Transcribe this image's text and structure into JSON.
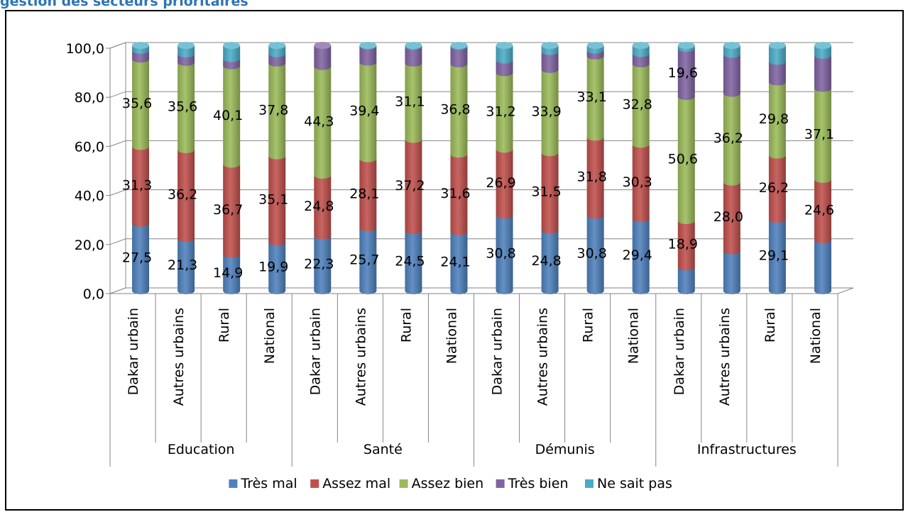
{
  "page": {
    "title": "gestion des secteurs prioritaires"
  },
  "chart_data": {
    "type": "bar",
    "stacked": true,
    "three_d": true,
    "title": "",
    "xlabel": "",
    "ylabel": "",
    "ylim": [
      0,
      100
    ],
    "yticks": [
      "0,0",
      "20,0",
      "40,0",
      "60,0",
      "80,0",
      "100,0"
    ],
    "grid": true,
    "legend_position": "bottom",
    "groups": [
      {
        "name": "Education",
        "categories": [
          "Dakar urbain",
          "Autres urbains",
          "Rural",
          "National"
        ]
      },
      {
        "name": "Santé",
        "categories": [
          "Dakar urbain",
          "Autres urbains",
          "Rural",
          "National"
        ]
      },
      {
        "name": "Démunis",
        "categories": [
          "Dakar urbain",
          "Autres urbains",
          "Rural",
          "National"
        ]
      },
      {
        "name": "Infrastructures",
        "categories": [
          "Dakar urbain",
          "Autres urbains",
          "Rural",
          "National"
        ]
      }
    ],
    "series": [
      {
        "name": "Très mal",
        "color": "#4F81BD",
        "values": [
          27.5,
          21.3,
          14.9,
          19.9,
          22.3,
          25.7,
          24.5,
          24.1,
          30.8,
          24.8,
          30.8,
          29.4,
          9.7,
          16.3,
          29.1,
          20.8
        ],
        "labels": [
          "27,5",
          "21,3",
          "14,9",
          "19,9",
          "22,3",
          "25,7",
          "24,5",
          "24,1",
          "30,8",
          "24,8",
          "30,8",
          "29,4",
          "",
          "",
          "29,1",
          ""
        ]
      },
      {
        "name": "Assez mal",
        "color": "#C0504D",
        "values": [
          31.3,
          36.2,
          36.7,
          35.1,
          24.8,
          28.1,
          37.2,
          31.6,
          26.9,
          31.5,
          31.8,
          30.3,
          18.9,
          28.0,
          26.2,
          24.6
        ],
        "labels": [
          "31,3",
          "36,2",
          "36,7",
          "35,1",
          "24,8",
          "28,1",
          "37,2",
          "31,6",
          "26,9",
          "31,5",
          "31,8",
          "30,3",
          "18,9",
          "28,0",
          "26,2",
          "24,6"
        ]
      },
      {
        "name": "Assez bien",
        "color": "#9BBB59",
        "values": [
          35.6,
          35.6,
          40.1,
          37.8,
          44.3,
          39.4,
          31.1,
          36.8,
          31.2,
          33.9,
          33.1,
          32.8,
          50.6,
          36.2,
          29.8,
          37.1
        ],
        "labels": [
          "35,6",
          "35,6",
          "40,1",
          "37,8",
          "44,3",
          "39,4",
          "31,1",
          "36,8",
          "31,2",
          "33,9",
          "33,1",
          "32,8",
          "50,6",
          "36,2",
          "29,8",
          "37,1"
        ]
      },
      {
        "name": "Très bien",
        "color": "#8064A2",
        "values": [
          3.6,
          3.4,
          2.9,
          3.8,
          8.6,
          6.6,
          6.8,
          7.1,
          5.1,
          7.3,
          2.4,
          4.2,
          19.6,
          15.9,
          8.4,
          13.5
        ],
        "labels": [
          "",
          "",
          "",
          "",
          "",
          "",
          "",
          "",
          "",
          "",
          "",
          "",
          "19,6",
          "",
          "",
          ""
        ]
      },
      {
        "name": "Ne sait pas",
        "color": "#4BACC6",
        "values": [
          2.0,
          3.5,
          5.4,
          3.4,
          0.0,
          0.2,
          0.4,
          0.4,
          6.0,
          2.5,
          1.9,
          3.3,
          1.2,
          3.6,
          6.5,
          4.0
        ],
        "labels": [
          "",
          "",
          "",
          "",
          "",
          "",
          "",
          "",
          "",
          "",
          "",
          "",
          "",
          "",
          "",
          ""
        ]
      }
    ]
  }
}
